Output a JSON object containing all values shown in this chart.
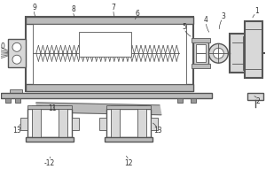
{
  "bg_color": "#ffffff",
  "line_color": "#555555",
  "label_color": "#333333",
  "fill_light": "#d8d8d8",
  "fill_mid": "#bbbbbb",
  "fill_dark": "#999999"
}
